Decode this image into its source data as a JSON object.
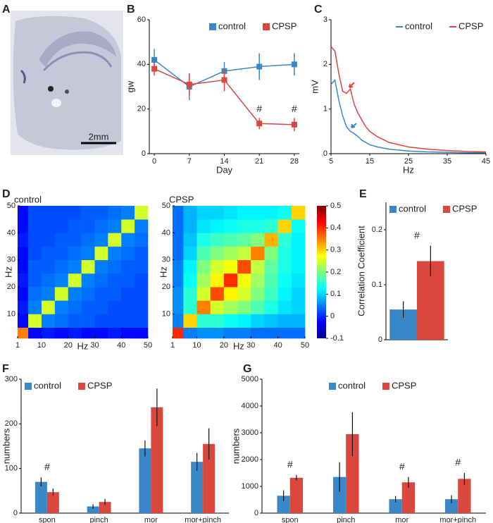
{
  "chart_data": [
    {
      "type": "image",
      "panel_label": "A",
      "scale_bar_label": "2mm"
    },
    {
      "type": "line",
      "panel_label": "B",
      "xlabel": "Day",
      "ylabel": "gw",
      "x": [
        0,
        7,
        14,
        21,
        28
      ],
      "xlim": [
        -1,
        29
      ],
      "xticks": [
        0,
        7,
        14,
        21,
        28
      ],
      "ylim": [
        0,
        60
      ],
      "yticks": [
        0,
        20,
        40,
        60
      ],
      "markers": true,
      "legend": "upper right",
      "series": [
        {
          "name": "control",
          "color": "#3a87c8",
          "values": [
            42,
            30,
            37,
            39,
            40
          ],
          "errors": [
            5,
            6,
            4,
            6,
            5
          ]
        },
        {
          "name": "CPSP",
          "color": "#d9473f",
          "values": [
            38,
            31,
            33,
            13.5,
            13
          ],
          "errors": [
            3,
            5,
            5,
            2.5,
            3
          ]
        }
      ],
      "annotations": [
        {
          "text": "#",
          "x": 21
        },
        {
          "text": "#",
          "x": 28
        }
      ]
    },
    {
      "type": "line",
      "panel_label": "C",
      "xlabel": "Hz",
      "ylabel": "mV",
      "x": [
        5,
        6,
        7,
        8,
        9,
        10,
        11,
        12,
        13,
        14,
        15,
        17,
        20,
        25,
        30,
        35,
        40,
        45
      ],
      "xlim": [
        5,
        45
      ],
      "xticks": [
        5,
        15,
        25,
        35,
        45
      ],
      "ylim": [
        0,
        3
      ],
      "yticks": [
        0,
        1,
        2,
        3
      ],
      "markers": false,
      "legend": "upper right",
      "series": [
        {
          "name": "control",
          "color": "#3a87c8",
          "values": [
            1.55,
            1.65,
            1.2,
            0.85,
            0.6,
            0.5,
            0.45,
            0.38,
            0.3,
            0.25,
            0.2,
            0.15,
            0.1,
            0.06,
            0.04,
            0.03,
            0.02,
            0.02
          ]
        },
        {
          "name": "CPSP",
          "color": "#d9473f",
          "values": [
            2.4,
            2.3,
            1.8,
            1.4,
            1.35,
            1.45,
            1.1,
            0.9,
            0.75,
            0.6,
            0.5,
            0.38,
            0.25,
            0.15,
            0.1,
            0.07,
            0.05,
            0.04
          ]
        }
      ]
    },
    {
      "type": "heatmap",
      "panel_label": "D",
      "xlabel": "Hz",
      "ylabel": "Hz",
      "bins": [
        1,
        5,
        10,
        15,
        20,
        25,
        30,
        35,
        40,
        45,
        50
      ],
      "xlim": [
        1,
        50
      ],
      "xticks": [
        1,
        10,
        20,
        30,
        40,
        50
      ],
      "yticks": [
        10,
        20,
        30,
        40,
        50
      ],
      "colorbar": {
        "lim": [
          -0.1,
          0.5
        ],
        "ticks": [
          -0.1,
          0,
          0.1,
          0.2,
          0.3,
          0.4,
          0.5
        ]
      },
      "maps": [
        {
          "name": "control",
          "values": [
            [
              0.35,
              -0.02,
              -0.01,
              -0.02,
              -0.01,
              -0.02,
              -0.02,
              -0.01,
              -0.02,
              -0.02
            ],
            [
              -0.02,
              0.25,
              0.05,
              0.04,
              0.03,
              0.03,
              0.02,
              0.02,
              0.02,
              0.02
            ],
            [
              -0.01,
              0.05,
              0.25,
              0.05,
              0.04,
              0.03,
              0.03,
              0.02,
              0.02,
              0.02
            ],
            [
              -0.02,
              0.04,
              0.05,
              0.25,
              0.05,
              0.04,
              0.03,
              0.03,
              0.02,
              0.02
            ],
            [
              -0.01,
              0.03,
              0.04,
              0.05,
              0.25,
              0.05,
              0.04,
              0.03,
              0.03,
              0.02
            ],
            [
              -0.02,
              0.03,
              0.03,
              0.04,
              0.05,
              0.25,
              0.05,
              0.04,
              0.03,
              0.03
            ],
            [
              -0.02,
              0.02,
              0.03,
              0.03,
              0.04,
              0.05,
              0.25,
              0.05,
              0.04,
              0.03
            ],
            [
              -0.01,
              0.02,
              0.02,
              0.03,
              0.03,
              0.04,
              0.05,
              0.25,
              0.05,
              0.04
            ],
            [
              -0.02,
              0.02,
              0.02,
              0.02,
              0.03,
              0.03,
              0.04,
              0.05,
              0.25,
              0.05
            ],
            [
              -0.02,
              0.02,
              0.02,
              0.02,
              0.02,
              0.03,
              0.03,
              0.04,
              0.05,
              0.25
            ]
          ]
        },
        {
          "name": "CPSP",
          "values": [
            [
              0.4,
              0.05,
              0.06,
              0.06,
              0.05,
              0.05,
              0.04,
              0.04,
              0.04,
              0.04
            ],
            [
              0.05,
              0.3,
              0.15,
              0.15,
              0.13,
              0.12,
              0.1,
              0.09,
              0.08,
              0.08
            ],
            [
              0.06,
              0.15,
              0.35,
              0.25,
              0.22,
              0.2,
              0.17,
              0.14,
              0.11,
              0.1
            ],
            [
              0.06,
              0.15,
              0.25,
              0.38,
              0.28,
              0.25,
              0.2,
              0.16,
              0.12,
              0.1
            ],
            [
              0.05,
              0.13,
              0.22,
              0.28,
              0.4,
              0.27,
              0.22,
              0.17,
              0.13,
              0.11
            ],
            [
              0.05,
              0.12,
              0.2,
              0.25,
              0.27,
              0.38,
              0.24,
              0.18,
              0.14,
              0.12
            ],
            [
              0.04,
              0.1,
              0.17,
              0.2,
              0.22,
              0.24,
              0.35,
              0.2,
              0.14,
              0.12
            ],
            [
              0.04,
              0.09,
              0.14,
              0.16,
              0.17,
              0.18,
              0.2,
              0.32,
              0.15,
              0.12
            ],
            [
              0.04,
              0.08,
              0.11,
              0.12,
              0.13,
              0.14,
              0.14,
              0.15,
              0.3,
              0.13
            ],
            [
              0.04,
              0.08,
              0.1,
              0.1,
              0.11,
              0.12,
              0.12,
              0.12,
              0.13,
              0.3
            ]
          ]
        }
      ]
    },
    {
      "type": "bar",
      "panel_label": "E",
      "ylabel": "Correlation Coefficient",
      "categories": [
        null
      ],
      "ylim": [
        0,
        0.25
      ],
      "yticks": [
        0,
        0.1,
        0.2
      ],
      "legend": "upper left",
      "series": [
        {
          "name": "control",
          "color": "#3a87c8",
          "values": [
            0.055
          ],
          "errors": [
            0.015
          ]
        },
        {
          "name": "CPSP",
          "color": "#d9473f",
          "values": [
            0.143
          ],
          "errors": [
            0.028
          ]
        }
      ],
      "annotations": [
        {
          "text": "#"
        }
      ]
    },
    {
      "type": "bar",
      "panel_label": "F",
      "ylabel": "numbers",
      "categories": [
        "spon",
        "pinch",
        "mor",
        "mor+pinch"
      ],
      "ylim": [
        0,
        300
      ],
      "yticks": [
        0,
        100,
        200,
        300
      ],
      "legend": "upper left",
      "series": [
        {
          "name": "control",
          "color": "#3a87c8",
          "values": [
            70,
            15,
            145,
            115
          ],
          "errors": [
            10,
            5,
            18,
            20
          ]
        },
        {
          "name": "CPSP",
          "color": "#d9473f",
          "values": [
            47,
            25,
            237,
            155
          ],
          "errors": [
            8,
            7,
            42,
            35
          ]
        }
      ],
      "annotations": [
        {
          "text": "#",
          "x": "spon"
        }
      ]
    },
    {
      "type": "bar",
      "panel_label": "G",
      "ylabel": "numbers",
      "categories": [
        "spon",
        "pinch",
        "mor",
        "mor+pinch"
      ],
      "ylim": [
        0,
        5000
      ],
      "yticks": [
        0,
        1000,
        2000,
        3000,
        4000,
        5000
      ],
      "legend": "upper center",
      "series": [
        {
          "name": "control",
          "color": "#3a87c8",
          "values": [
            650,
            1350,
            520,
            520
          ],
          "errors": [
            200,
            550,
            120,
            150
          ]
        },
        {
          "name": "CPSP",
          "color": "#d9473f",
          "values": [
            1320,
            2950,
            1150,
            1280
          ],
          "errors": [
            100,
            820,
            200,
            220
          ]
        }
      ],
      "annotations": [
        {
          "text": "#",
          "x": "spon"
        },
        {
          "text": "#",
          "x": "mor"
        },
        {
          "text": "#",
          "x": "mor+pinch"
        }
      ]
    }
  ]
}
